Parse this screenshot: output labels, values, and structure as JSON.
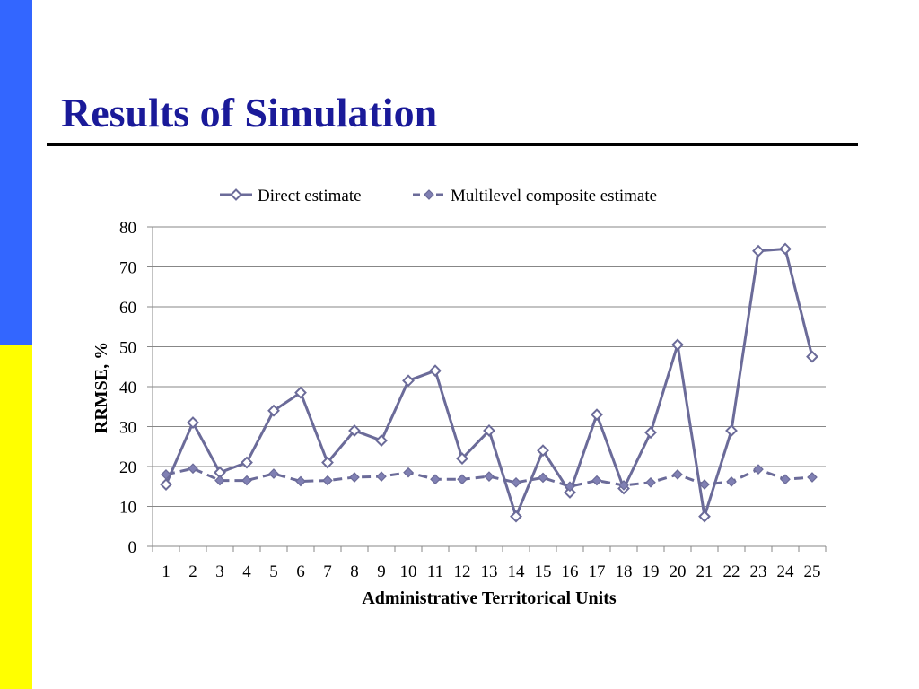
{
  "slide": {
    "title": "Results of Simulation"
  },
  "colors": {
    "sidebar_top": "#3366ff",
    "sidebar_bottom": "#ffff00",
    "title": "#1a1a99",
    "series_line": "#6b6b99",
    "series_marker_fill": "#8080b3"
  },
  "chart_data": {
    "type": "line",
    "title": "",
    "xlabel": "Administrative Territorical Units",
    "ylabel": "RRMSE, %",
    "ylim": [
      0,
      80
    ],
    "yticks": [
      "0",
      "10",
      "20",
      "30",
      "40",
      "50",
      "60",
      "70",
      "80"
    ],
    "grid": true,
    "legend_position": "top",
    "categories": [
      "1",
      "2",
      "3",
      "4",
      "5",
      "6",
      "7",
      "8",
      "9",
      "10",
      "11",
      "12",
      "13",
      "14",
      "15",
      "16",
      "17",
      "18",
      "19",
      "20",
      "21",
      "22",
      "23",
      "24",
      "25"
    ],
    "series": [
      {
        "name": "Direct estimate",
        "line_style": "solid",
        "marker": "hollow-diamond",
        "values": [
          15.5,
          31,
          18.5,
          21,
          34,
          38.5,
          21,
          29,
          26.5,
          41.5,
          44,
          22,
          29,
          7.5,
          24,
          13.5,
          33,
          14.5,
          28.5,
          50.5,
          7.5,
          29,
          74,
          74.5,
          47.5
        ]
      },
      {
        "name": "Multilevel composite estimate",
        "line_style": "dashed",
        "marker": "filled-diamond",
        "values": [
          18,
          19.5,
          16.5,
          16.5,
          18.2,
          16.3,
          16.5,
          17.3,
          17.5,
          18.5,
          16.8,
          16.8,
          17.5,
          16,
          17.2,
          15,
          16.5,
          15.3,
          16,
          18,
          15.5,
          16.2,
          19.3,
          16.8,
          17.3
        ]
      }
    ]
  }
}
